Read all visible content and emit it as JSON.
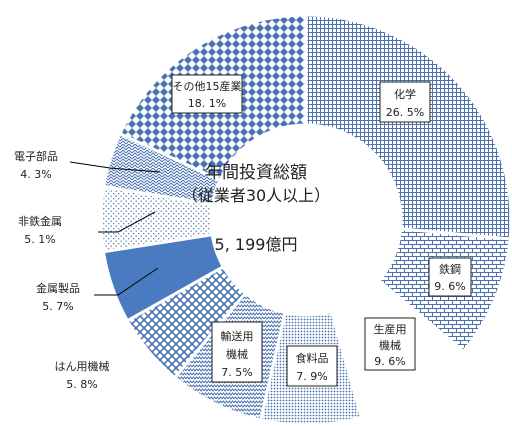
{
  "chart_data": {
    "type": "pie",
    "variant": "donut",
    "center_title_line1": "年間投資総額",
    "center_title_line2": "（従業者30人以上）",
    "center_total": "5, 199億円",
    "slices": [
      {
        "name": "化学",
        "value": 26.5,
        "label": "26. 5%",
        "pattern": "grid",
        "color": "#4a72b0"
      },
      {
        "name": "鉄鋼",
        "value": 9.6,
        "label": "9. 6%",
        "pattern": "brick",
        "color": "#4a72b0"
      },
      {
        "name": "生産用\n機械",
        "value": 9.6,
        "label": "9. 6%",
        "pattern": "blank",
        "color": "#4a72b0"
      },
      {
        "name": "食料品",
        "value": 7.9,
        "label": "7. 9%",
        "pattern": "dots",
        "color": "#4a72b0"
      },
      {
        "name": "輸送用\n機械",
        "value": 7.5,
        "label": "7. 5%",
        "pattern": "zigzag",
        "color": "#4a72b0"
      },
      {
        "name": "はん用機械",
        "value": 5.8,
        "label": "5. 8%",
        "pattern": "diamond",
        "color": "#4a72b0"
      },
      {
        "name": "金属製品",
        "value": 5.7,
        "label": "5. 7%",
        "pattern": "solid",
        "color": "#4a7bc0"
      },
      {
        "name": "非鉄金属",
        "value": 5.1,
        "label": "5. 1%",
        "pattern": "sparse",
        "color": "#4a72b0"
      },
      {
        "name": "電子部品",
        "value": 4.3,
        "label": "4. 3%",
        "pattern": "weave",
        "color": "#4a72b0"
      },
      {
        "name": "その他15産業",
        "value": 18.1,
        "label": "18. 1%",
        "pattern": "check",
        "color": "#4a72b0"
      }
    ]
  }
}
